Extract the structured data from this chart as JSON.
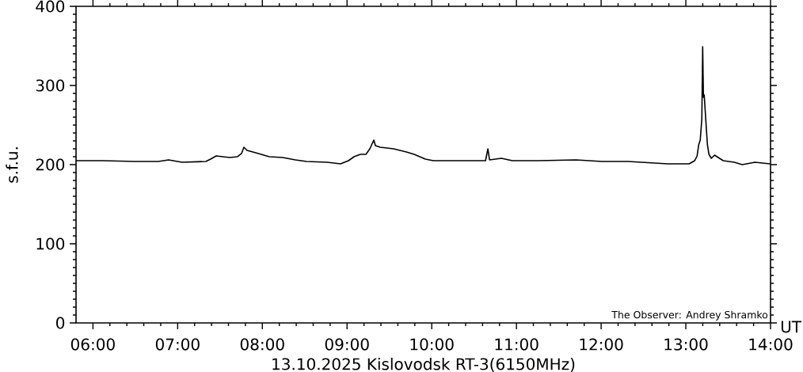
{
  "chart_data": {
    "type": "line",
    "xlabel": "13.10.2025 Kislovodsk RT-3(6150MHz)",
    "ylabel": "s.f.u.",
    "annotations": [
      "UT",
      "The Observer: Andrey Shramko"
    ],
    "xlim": [
      5.8,
      14
    ],
    "xticks": [
      {
        "value": 6,
        "label": "06:00"
      },
      {
        "value": 7,
        "label": "07:00"
      },
      {
        "value": 8,
        "label": "08:00"
      },
      {
        "value": 9,
        "label": "09:00"
      },
      {
        "value": 10,
        "label": "10:00"
      },
      {
        "value": 11,
        "label": "11:00"
      },
      {
        "value": 12,
        "label": "12:00"
      },
      {
        "value": 13,
        "label": "13:00"
      },
      {
        "value": 14,
        "label": "14:00"
      }
    ],
    "ylim": [
      0,
      400
    ],
    "yticks": [
      0,
      100,
      200,
      300,
      400
    ],
    "x": [
      5.8,
      6.117,
      6.491,
      6.772,
      6.893,
      7.052,
      7.333,
      7.389,
      7.455,
      7.614,
      7.707,
      7.754,
      7.782,
      7.819,
      7.922,
      8.081,
      8.24,
      8.39,
      8.521,
      8.764,
      8.923,
      9.017,
      9.082,
      9.157,
      9.223,
      9.269,
      9.316,
      9.335,
      9.391,
      9.55,
      9.7,
      9.793,
      9.924,
      10.018,
      10.326,
      10.635,
      10.663,
      10.682,
      10.822,
      10.953,
      11.262,
      11.702,
      12.01,
      12.319,
      12.787,
      13.039,
      13.105,
      13.133,
      13.152,
      13.17,
      13.189,
      13.199,
      13.208,
      13.217,
      13.227,
      13.245,
      13.255,
      13.273,
      13.301,
      13.339,
      13.441,
      13.572,
      13.666,
      13.816,
      13.993
    ],
    "series": [
      {
        "color": "#000000",
        "values": [
          205,
          205,
          204,
          204,
          206,
          203,
          204,
          207,
          211,
          209,
          210,
          214,
          222,
          218,
          215,
          210,
          209,
          206,
          204,
          203,
          201,
          205,
          210,
          213,
          213,
          220,
          231,
          224,
          222,
          220,
          216,
          213,
          207,
          205,
          205,
          205,
          220,
          206,
          208,
          205,
          205,
          206,
          204,
          204,
          201,
          201,
          205,
          211,
          225,
          231,
          258,
          349,
          285,
          288,
          271,
          241,
          225,
          213,
          208,
          212,
          205,
          203,
          200,
          203,
          201
        ]
      }
    ]
  }
}
